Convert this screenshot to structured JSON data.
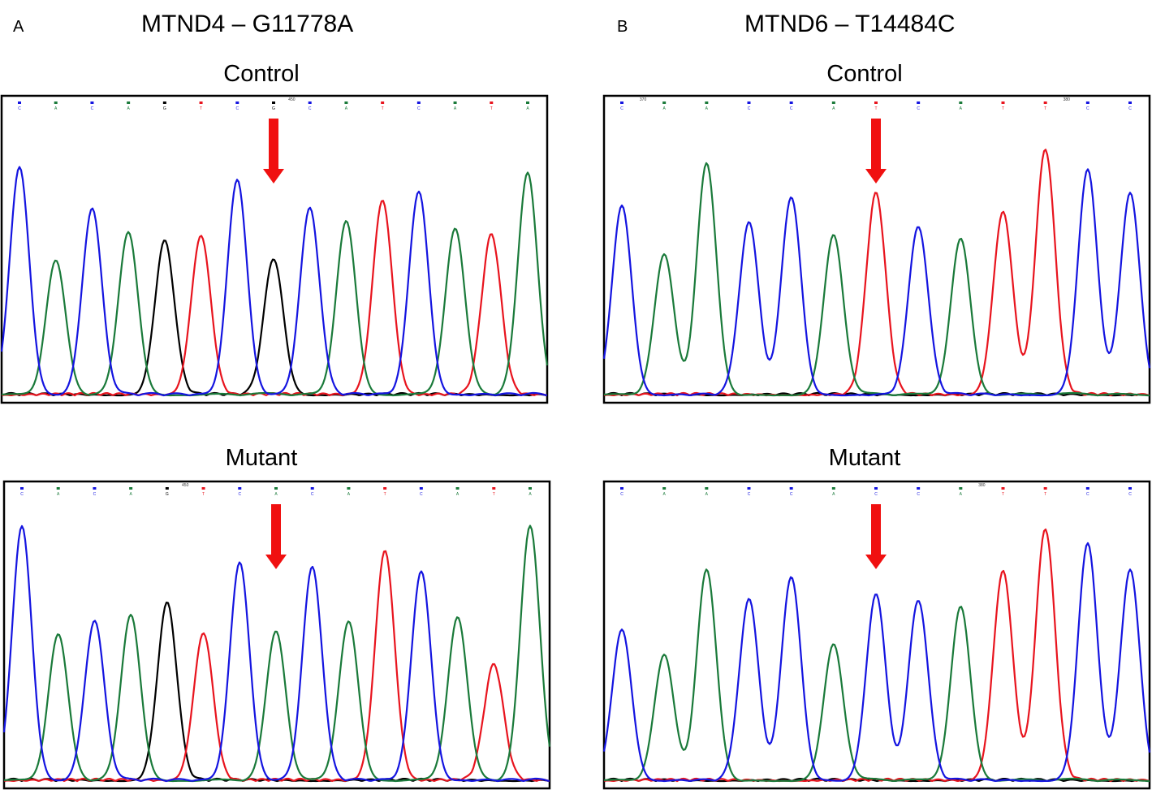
{
  "panels": [
    {
      "letter": "A",
      "gene_title": "MTND4 – G11778A",
      "control": {
        "title": "Control",
        "bases": [
          "C",
          "A",
          "C",
          "A",
          "G",
          "T",
          "C",
          "G",
          "C",
          "A",
          "T",
          "C",
          "A",
          "T",
          "A"
        ],
        "peak_heights": [
          0.77,
          0.45,
          0.63,
          0.55,
          0.52,
          0.54,
          0.73,
          0.46,
          0.63,
          0.59,
          0.66,
          0.69,
          0.56,
          0.54,
          0.75
        ],
        "position_marker": "450",
        "arrow_at_base_index": 7
      },
      "mutant": {
        "title": "Mutant",
        "bases": [
          "C",
          "A",
          "C",
          "A",
          "G",
          "T",
          "C",
          "A",
          "C",
          "A",
          "T",
          "C",
          "A",
          "T",
          "A"
        ],
        "peak_heights": [
          0.86,
          0.49,
          0.54,
          0.56,
          0.6,
          0.5,
          0.74,
          0.5,
          0.72,
          0.54,
          0.78,
          0.71,
          0.55,
          0.39,
          0.86
        ],
        "position_marker": "450",
        "arrow_at_base_index": 7
      }
    },
    {
      "letter": "B",
      "gene_title": "MTND6 – T14484C",
      "control": {
        "title": "Control",
        "bases": [
          "C",
          "A",
          "A",
          "C",
          "C",
          "A",
          "T",
          "C",
          "A",
          "T",
          "T",
          "C",
          "C"
        ],
        "peak_heights": [
          0.64,
          0.47,
          0.78,
          0.58,
          0.67,
          0.54,
          0.68,
          0.57,
          0.53,
          0.62,
          0.83,
          0.76,
          0.68
        ],
        "position_markers": [
          "370",
          "380"
        ],
        "arrow_at_base_index": 6
      },
      "mutant": {
        "title": "Mutant",
        "bases": [
          "C",
          "A",
          "A",
          "C",
          "C",
          "A",
          "C",
          "C",
          "A",
          "T",
          "T",
          "C",
          "C"
        ],
        "peak_heights": [
          0.51,
          0.42,
          0.71,
          0.61,
          0.69,
          0.46,
          0.63,
          0.61,
          0.59,
          0.71,
          0.85,
          0.8,
          0.71
        ],
        "position_marker": "380",
        "arrow_at_base_index": 6
      }
    }
  ],
  "chart_data": [
    {
      "type": "line",
      "name": "MTND4 – G11778A Control chromatogram",
      "bases": [
        "C",
        "A",
        "C",
        "A",
        "G",
        "T",
        "C",
        "G",
        "C",
        "A",
        "T",
        "C",
        "A",
        "T",
        "A"
      ],
      "values": [
        0.77,
        0.45,
        0.63,
        0.55,
        0.52,
        0.54,
        0.73,
        0.46,
        0.63,
        0.59,
        0.66,
        0.69,
        0.56,
        0.54,
        0.75
      ]
    },
    {
      "type": "line",
      "name": "MTND4 – G11778A Mutant chromatogram",
      "bases": [
        "C",
        "A",
        "C",
        "A",
        "G",
        "T",
        "C",
        "A",
        "C",
        "A",
        "T",
        "C",
        "A",
        "T",
        "A"
      ],
      "values": [
        0.86,
        0.49,
        0.54,
        0.56,
        0.6,
        0.5,
        0.74,
        0.5,
        0.72,
        0.54,
        0.78,
        0.71,
        0.55,
        0.39,
        0.86
      ]
    },
    {
      "type": "line",
      "name": "MTND6 – T14484C Control chromatogram",
      "bases": [
        "C",
        "A",
        "A",
        "C",
        "C",
        "A",
        "T",
        "C",
        "A",
        "T",
        "T",
        "C",
        "C"
      ],
      "values": [
        0.64,
        0.47,
        0.78,
        0.58,
        0.67,
        0.54,
        0.68,
        0.57,
        0.53,
        0.62,
        0.83,
        0.76,
        0.68
      ]
    },
    {
      "type": "line",
      "name": "MTND6 – T14484C Mutant chromatogram",
      "bases": [
        "C",
        "A",
        "A",
        "C",
        "C",
        "A",
        "C",
        "C",
        "A",
        "T",
        "T",
        "C",
        "C"
      ],
      "values": [
        0.51,
        0.42,
        0.71,
        0.61,
        0.69,
        0.46,
        0.63,
        0.61,
        0.59,
        0.71,
        0.85,
        0.8,
        0.71
      ]
    }
  ],
  "base_colors": {
    "A": "#1a7a3a",
    "C": "#1414e0",
    "G": "#000000",
    "T": "#e8141e"
  },
  "arrow_color": "#f01010"
}
